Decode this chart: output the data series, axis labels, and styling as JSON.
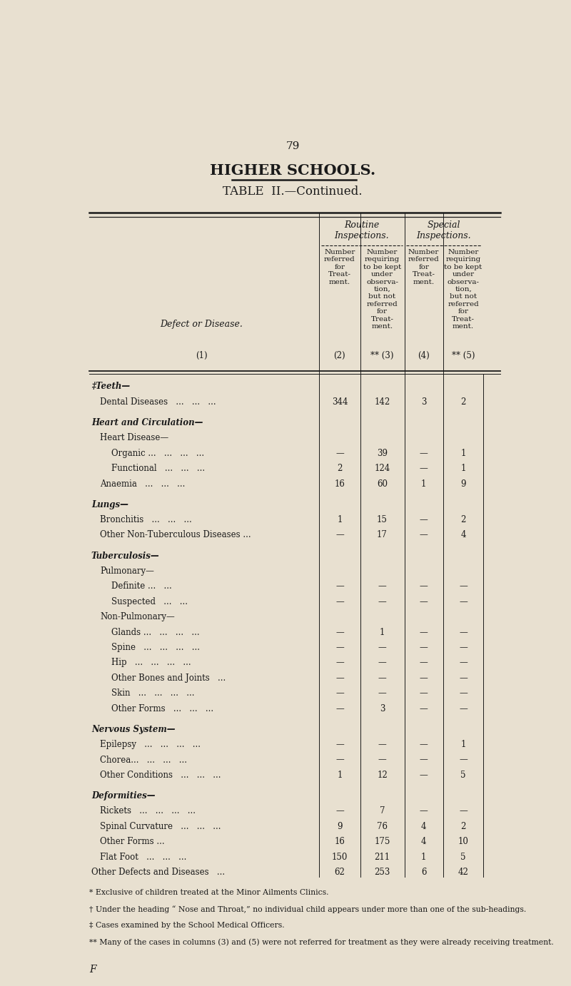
{
  "page_number": "79",
  "main_title": "HIGHER SCHOOLS.",
  "table_title": "TABLE  II.—Continued.",
  "bg_color": "#e8e0d0",
  "text_color": "#1a1a1a",
  "rows": [
    {
      "label": "‡Teeth—",
      "level": 0,
      "is_section": true,
      "data": [
        null,
        null,
        null,
        null
      ]
    },
    {
      "label": "Dental Diseases",
      "level": 1,
      "dots": "   ...   ...   ...",
      "data": [
        "344",
        "142",
        "3",
        "2"
      ]
    },
    {
      "label": "Heart and Circulation—",
      "level": 0,
      "is_section": true,
      "data": [
        null,
        null,
        null,
        null
      ]
    },
    {
      "label": "Heart Disease—",
      "level": 1,
      "is_subsection": true,
      "data": [
        null,
        null,
        null,
        null
      ]
    },
    {
      "label": "Organic ...",
      "level": 2,
      "dots": "   ...   ...   ...",
      "data": [
        "—",
        "39",
        "—",
        "1"
      ]
    },
    {
      "label": "Functional",
      "level": 2,
      "dots": "   ...   ...   ...",
      "data": [
        "2",
        "124",
        "—",
        "1"
      ]
    },
    {
      "label": "Anaemia",
      "level": 1,
      "dots": "   ...   ...   ...",
      "data": [
        "16",
        "60",
        "1",
        "9"
      ]
    },
    {
      "label": "Lungs—",
      "level": 0,
      "is_section": true,
      "data": [
        null,
        null,
        null,
        null
      ]
    },
    {
      "label": "Bronchitis",
      "level": 1,
      "dots": "   ...   ...   ...",
      "data": [
        "1",
        "15",
        "—",
        "2"
      ]
    },
    {
      "label": "Other Non-Tuberculous Diseases ...",
      "level": 1,
      "dots": "",
      "data": [
        "—",
        "17",
        "—",
        "4"
      ]
    },
    {
      "label": "Tuberculosis—",
      "level": 0,
      "is_section": true,
      "data": [
        null,
        null,
        null,
        null
      ]
    },
    {
      "label": "Pulmonary—",
      "level": 1,
      "is_subsection": true,
      "data": [
        null,
        null,
        null,
        null
      ]
    },
    {
      "label": "Definite ...",
      "level": 2,
      "dots": "   ...",
      "data": [
        "—",
        "—",
        "—",
        "—"
      ]
    },
    {
      "label": "Suspected",
      "level": 2,
      "dots": "   ...   ...",
      "data": [
        "—",
        "—",
        "—",
        "—"
      ]
    },
    {
      "label": "Non-Pulmonary—",
      "level": 1,
      "is_subsection": true,
      "data": [
        null,
        null,
        null,
        null
      ]
    },
    {
      "label": "Glands ...",
      "level": 2,
      "dots": "   ...   ...   ...",
      "data": [
        "—",
        "1",
        "—",
        "—"
      ]
    },
    {
      "label": "Spine",
      "level": 2,
      "dots": "   ...   ...   ...   ...",
      "data": [
        "—",
        "—",
        "—",
        "—"
      ]
    },
    {
      "label": "Hip",
      "level": 2,
      "dots": "   ...   ...   ...   ...",
      "data": [
        "—",
        "—",
        "—",
        "—"
      ]
    },
    {
      "label": "Other Bones and Joints",
      "level": 2,
      "dots": "   ...",
      "data": [
        "—",
        "—",
        "—",
        "—"
      ]
    },
    {
      "label": "Skin",
      "level": 2,
      "dots": "   ...   ...   ...   ...",
      "data": [
        "—",
        "—",
        "—",
        "—"
      ]
    },
    {
      "label": "Other Forms",
      "level": 2,
      "dots": "   ...   ...   ...",
      "data": [
        "—",
        "3",
        "—",
        "—"
      ]
    },
    {
      "label": "Nervous System—",
      "level": 0,
      "is_section": true,
      "data": [
        null,
        null,
        null,
        null
      ]
    },
    {
      "label": "Epilepsy",
      "level": 1,
      "dots": "   ...   ...   ...   ...",
      "data": [
        "—",
        "—",
        "—",
        "1"
      ]
    },
    {
      "label": "Chorea...",
      "level": 1,
      "dots": "   ...   ...   ...",
      "data": [
        "—",
        "—",
        "—",
        "—"
      ]
    },
    {
      "label": "Other Conditions",
      "level": 1,
      "dots": "   ...   ...   ...",
      "data": [
        "1",
        "12",
        "—",
        "5"
      ]
    },
    {
      "label": "Deformities—",
      "level": 0,
      "is_section": true,
      "data": [
        null,
        null,
        null,
        null
      ]
    },
    {
      "label": "Rickets",
      "level": 1,
      "dots": "   ...   ...   ...   ...",
      "data": [
        "—",
        "7",
        "—",
        "—"
      ]
    },
    {
      "label": "Spinal Curvature",
      "level": 1,
      "dots": "   ...   ...   ...",
      "data": [
        "9",
        "76",
        "4",
        "2"
      ]
    },
    {
      "label": "Other Forms ...",
      "level": 1,
      "dots": "",
      "data": [
        "16",
        "175",
        "4",
        "10"
      ]
    },
    {
      "label": "Flat Foot",
      "level": 1,
      "dots": "   ...   ...   ...",
      "data": [
        "150",
        "211",
        "1",
        "5"
      ]
    },
    {
      "label": "Other Defects and Diseases",
      "level": 0,
      "dots": "   ...",
      "data": [
        "62",
        "253",
        "6",
        "42"
      ]
    }
  ],
  "footnotes": [
    "* Exclusive of children treated at the Minor Ailments Clinics.",
    "† Under the heading “ Nose and Throat,” no individual child appears under more than one of the sub-headings.",
    "‡ Cases examined by the School Medical Officers.",
    "** Many of the cases in columns (3) and (5) were not referred for treatment as they were already receiving treatment."
  ],
  "footer_letter": "F"
}
